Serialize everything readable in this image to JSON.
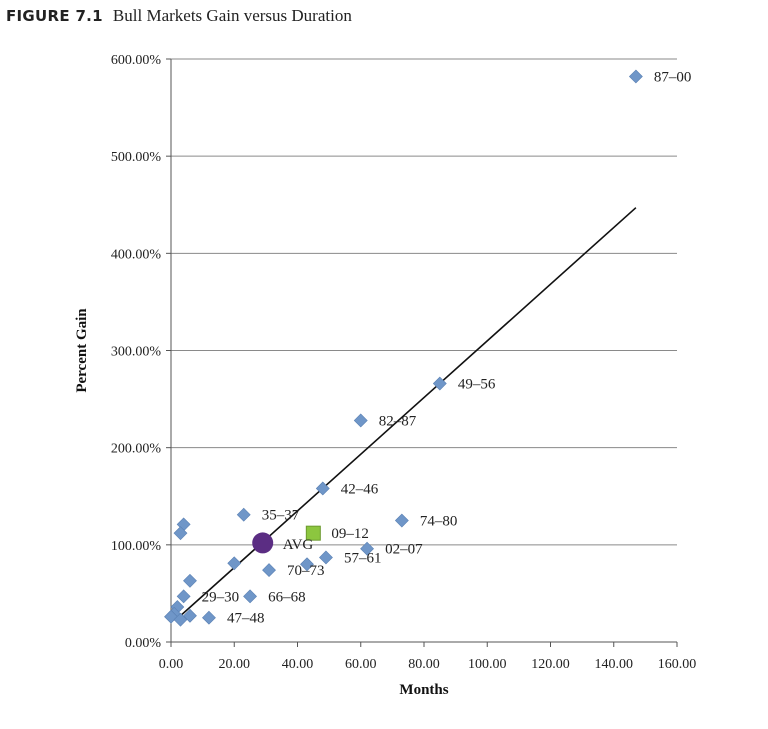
{
  "figure": {
    "label": "FIGURE 7.1",
    "title": "Bull Markets Gain versus Duration"
  },
  "chart_data": {
    "type": "scatter",
    "title": "Bull Markets Gain versus Duration",
    "xlabel": "Months",
    "ylabel": "Percent Gain",
    "xlim": [
      0,
      160
    ],
    "ylim": [
      0,
      600
    ],
    "x_ticks": [
      0,
      20,
      40,
      60,
      80,
      100,
      120,
      140,
      160
    ],
    "x_tick_labels": [
      "0.00",
      "20.00",
      "40.00",
      "60.00",
      "80.00",
      "100.00",
      "120.00",
      "140.00",
      "160.00"
    ],
    "y_ticks": [
      0,
      100,
      200,
      300,
      400,
      500,
      600
    ],
    "y_tick_labels": [
      "0.00%",
      "100.00%",
      "200.00%",
      "300.00%",
      "400.00%",
      "500.00%",
      "600.00%"
    ],
    "grid": "horizontal",
    "point_color": "#6f96c8",
    "avg_color": "#5b2d83",
    "current_color": "#8cc63f",
    "trendline": {
      "x": [
        3,
        147
      ],
      "y": [
        27,
        447
      ]
    },
    "points": [
      {
        "x": 147,
        "y": 582,
        "label": "87–00"
      },
      {
        "x": 85,
        "y": 266,
        "label": "49–56"
      },
      {
        "x": 60,
        "y": 228,
        "label": "82–87"
      },
      {
        "x": 48,
        "y": 158,
        "label": "42–46"
      },
      {
        "x": 73,
        "y": 125,
        "label": "74–80"
      },
      {
        "x": 23,
        "y": 131,
        "label": "35–37"
      },
      {
        "x": 62,
        "y": 96,
        "label": "02–07"
      },
      {
        "x": 49,
        "y": 87,
        "label": "57–61"
      },
      {
        "x": 31,
        "y": 74,
        "label": "70–73"
      },
      {
        "x": 25,
        "y": 47,
        "label": "66–68"
      },
      {
        "x": 12,
        "y": 25,
        "label": "47–48"
      },
      {
        "x": 4,
        "y": 47,
        "label": "29–30"
      },
      {
        "x": 4,
        "y": 121,
        "label": ""
      },
      {
        "x": 3,
        "y": 112,
        "label": ""
      },
      {
        "x": 20,
        "y": 81,
        "label": ""
      },
      {
        "x": 43,
        "y": 80,
        "label": ""
      },
      {
        "x": 6,
        "y": 63,
        "label": ""
      },
      {
        "x": 2,
        "y": 36,
        "label": ""
      },
      {
        "x": 6,
        "y": 27,
        "label": ""
      },
      {
        "x": 1,
        "y": 29,
        "label": ""
      },
      {
        "x": 0,
        "y": 26,
        "label": ""
      },
      {
        "x": 3,
        "y": 23,
        "label": ""
      }
    ],
    "avg": {
      "x": 29,
      "y": 102,
      "label": "AVG"
    },
    "current": {
      "x": 45,
      "y": 112,
      "label": "09–12"
    }
  }
}
